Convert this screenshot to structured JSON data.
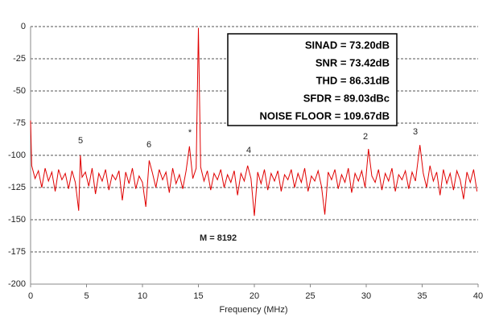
{
  "chart_data": {
    "type": "line",
    "xlabel": "Frequency (MHz)",
    "x": [
      0,
      0.1,
      0.4,
      0.7,
      1.0,
      1.3,
      1.6,
      1.9,
      2.2,
      2.5,
      2.8,
      3.1,
      3.4,
      3.7,
      4.0,
      4.3,
      4.45,
      4.6,
      4.9,
      5.2,
      5.5,
      5.8,
      6.1,
      6.4,
      6.7,
      7.0,
      7.3,
      7.6,
      7.9,
      8.2,
      8.5,
      8.8,
      9.1,
      9.4,
      9.7,
      10.0,
      10.3,
      10.6,
      10.9,
      11.2,
      11.5,
      11.8,
      12.1,
      12.4,
      12.7,
      13.0,
      13.3,
      13.6,
      13.9,
      14.2,
      14.5,
      14.8,
      15.0,
      15.2,
      15.5,
      15.8,
      16.1,
      16.4,
      16.7,
      17.0,
      17.3,
      17.6,
      17.9,
      18.2,
      18.5,
      18.8,
      19.1,
      19.4,
      19.7,
      20.0,
      20.3,
      20.6,
      20.9,
      21.2,
      21.5,
      21.8,
      22.1,
      22.4,
      22.7,
      23.0,
      23.3,
      23.6,
      23.9,
      24.2,
      24.5,
      24.8,
      25.1,
      25.4,
      25.7,
      26.0,
      26.3,
      26.6,
      26.9,
      27.2,
      27.5,
      27.8,
      28.1,
      28.4,
      28.7,
      29.0,
      29.3,
      29.6,
      29.9,
      30.2,
      30.5,
      30.8,
      31.1,
      31.4,
      31.7,
      32.0,
      32.3,
      32.6,
      32.9,
      33.2,
      33.5,
      33.8,
      34.1,
      34.4,
      34.8,
      35.1,
      35.4,
      35.7,
      36.0,
      36.3,
      36.6,
      36.9,
      37.2,
      37.5,
      37.8,
      38.1,
      38.4,
      38.7,
      39.0,
      39.3,
      39.6,
      39.9
    ],
    "series": [
      {
        "color": "#e00000",
        "values": [
          -73,
          -108,
          -118,
          -112,
          -125,
          -110,
          -120,
          -113,
          -128,
          -111,
          -119,
          -114,
          -126,
          -112,
          -121,
          -143,
          -100,
          -117,
          -113,
          -124,
          -110,
          -130,
          -114,
          -120,
          -111,
          -127,
          -115,
          -119,
          -112,
          -135,
          -113,
          -122,
          -110,
          -126,
          -116,
          -121,
          -140,
          -104,
          -114,
          -125,
          -111,
          -119,
          -113,
          -129,
          -110,
          -122,
          -115,
          -126,
          -112,
          -93,
          -118,
          -110,
          -1,
          -109,
          -120,
          -112,
          -127,
          -114,
          -119,
          -111,
          -125,
          -115,
          -121,
          -112,
          -131,
          -114,
          -120,
          -108,
          -118,
          -147,
          -113,
          -122,
          -111,
          -127,
          -114,
          -120,
          -112,
          -128,
          -115,
          -119,
          -111,
          -125,
          -114,
          -121,
          -110,
          -128,
          -116,
          -120,
          -112,
          -124,
          -146,
          -113,
          -119,
          -111,
          -126,
          -115,
          -121,
          -110,
          -129,
          -114,
          -120,
          -112,
          -125,
          -95,
          -116,
          -121,
          -111,
          -127,
          -114,
          -120,
          -110,
          -128,
          -115,
          -119,
          -112,
          -126,
          -113,
          -120,
          -92,
          -114,
          -125,
          -108,
          -120,
          -113,
          -131,
          -111,
          -122,
          -114,
          -127,
          -112,
          -119,
          -134,
          -113,
          -121,
          -111,
          -128
        ]
      }
    ],
    "xlim": [
      0,
      40
    ],
    "xticks": [
      0,
      5,
      10,
      15,
      20,
      25,
      30,
      35,
      40
    ],
    "ylim": [
      -200,
      0
    ],
    "yticks": [
      0,
      -25,
      -50,
      -75,
      -100,
      -125,
      -150,
      -175,
      -200
    ],
    "grid": true,
    "harmonic_labels": [
      "5",
      "6",
      "*",
      "4",
      "2",
      "3"
    ],
    "stats": [
      "SINAD = 73.20dB",
      "SNR = 73.42dB",
      "THD = 86.31dB",
      "SFDR = 89.03dBc",
      "NOISE FLOOR = 109.67dB"
    ],
    "annotation": "M = 8192"
  }
}
